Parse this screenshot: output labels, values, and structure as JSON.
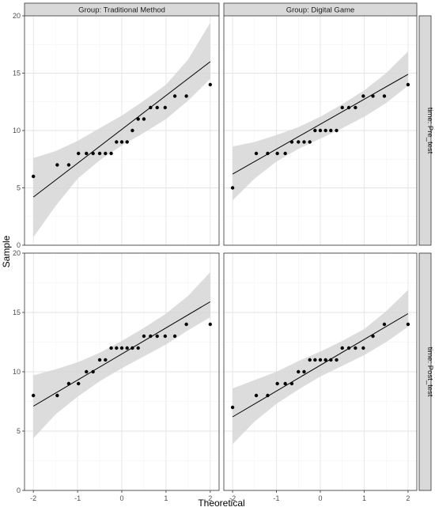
{
  "chart_data": {
    "type": "scatter",
    "kind": "faceted QQ plot with confidence band",
    "xlabel": "Theoretical",
    "ylabel": "Sample",
    "xlim": [
      -2.2,
      2.2
    ],
    "ylim": [
      0,
      20
    ],
    "x_ticks": [
      -2,
      -1,
      0,
      1,
      2
    ],
    "y_ticks": [
      0,
      5,
      10,
      15,
      20
    ],
    "x_tick_labels": [
      "-2",
      "-1",
      "0",
      "1",
      "2"
    ],
    "y_tick_labels": [
      "0",
      "5",
      "10",
      "15",
      "20"
    ],
    "grid": true,
    "column_strips": [
      "Group: Traditional Method",
      "Group: Digital Game"
    ],
    "row_strips": [
      "time: Pre_test",
      "time: Post_test"
    ],
    "theoretical_quantiles": [
      -2.0,
      -1.46,
      -1.2,
      -0.98,
      -0.8,
      -0.65,
      -0.5,
      -0.37,
      -0.24,
      -0.12,
      0.0,
      0.12,
      0.24,
      0.37,
      0.5,
      0.65,
      0.8,
      0.98,
      1.2,
      1.46,
      2.0
    ],
    "panels": [
      {
        "column": "Group: Traditional Method",
        "row": "time: Pre_test",
        "sample": [
          6,
          7,
          7,
          8,
          8,
          8,
          8,
          8,
          8,
          9,
          9,
          9,
          10,
          11,
          11,
          12,
          12,
          12,
          13,
          13,
          14
        ],
        "line": {
          "x": [
            -2,
            2
          ],
          "y": [
            4.2,
            16.0
          ]
        },
        "band": {
          "x": [
            -2,
            -1.5,
            -1,
            -0.5,
            0,
            0.5,
            1,
            1.5,
            2
          ],
          "lower": [
            0.7,
            3.4,
            5.8,
            7.4,
            8.7,
            9.8,
            11.0,
            12.6,
            14.5
          ],
          "upper": [
            7.6,
            8.2,
            9.1,
            10.2,
            11.3,
            12.6,
            14.0,
            16.2,
            19.4
          ]
        }
      },
      {
        "column": "Group: Digital Game",
        "row": "time: Pre_test",
        "sample": [
          5,
          8,
          8,
          8,
          8,
          9,
          9,
          9,
          9,
          10,
          10,
          10,
          10,
          10,
          12,
          12,
          12,
          13,
          13,
          13,
          14
        ],
        "line": {
          "x": [
            -2,
            2
          ],
          "y": [
            6.2,
            14.9
          ]
        },
        "band": {
          "x": [
            -2,
            -1.5,
            -1,
            -0.5,
            0,
            0.5,
            1,
            1.5,
            2
          ],
          "lower": [
            3.9,
            5.8,
            7.3,
            8.4,
            9.3,
            10.2,
            11.2,
            12.4,
            13.9
          ],
          "upper": [
            8.6,
            9.0,
            9.6,
            10.3,
            11.2,
            12.3,
            13.5,
            15.0,
            16.9
          ]
        }
      },
      {
        "column": "Group: Traditional Method",
        "row": "time: Post_test",
        "sample": [
          8,
          8,
          9,
          9,
          10,
          10,
          11,
          11,
          12,
          12,
          12,
          12,
          12,
          12,
          13,
          13,
          13,
          13,
          13,
          14,
          14
        ],
        "line": {
          "x": [
            -2,
            2
          ],
          "y": [
            7.1,
            15.9
          ]
        },
        "band": {
          "x": [
            -2,
            -1.5,
            -1,
            -0.5,
            0,
            0.5,
            1,
            1.5,
            2
          ],
          "lower": [
            4.4,
            6.4,
            7.9,
            9.2,
            10.3,
            11.3,
            12.3,
            13.5,
            14.6
          ],
          "upper": [
            9.7,
            10.2,
            10.8,
            11.6,
            12.6,
            13.7,
            14.9,
            16.4,
            18.4
          ]
        }
      },
      {
        "column": "Group: Digital Game",
        "row": "time: Post_test",
        "sample": [
          7,
          8,
          8,
          9,
          9,
          9,
          10,
          10,
          11,
          11,
          11,
          11,
          11,
          11,
          12,
          12,
          12,
          12,
          13,
          14,
          14
        ],
        "line": {
          "x": [
            -2,
            2
          ],
          "y": [
            6.2,
            14.9
          ]
        },
        "band": {
          "x": [
            -2,
            -1.5,
            -1,
            -0.5,
            0,
            0.5,
            1,
            1.5,
            2
          ],
          "lower": [
            3.9,
            5.8,
            7.3,
            8.5,
            9.6,
            10.5,
            11.4,
            12.5,
            13.8
          ],
          "upper": [
            8.6,
            9.3,
            10.0,
            10.9,
            11.7,
            12.6,
            13.6,
            15.1,
            16.9
          ]
        }
      }
    ]
  },
  "colors": {
    "panel_border": "#333333",
    "grid_major": "#e3e3e3",
    "grid_minor": "#f2f2f2",
    "strip_fill": "#d9d9d9",
    "band_fill": "#d6d6d6",
    "line": "#000000",
    "point": "#000000",
    "tick_label": "#4d4d4d"
  }
}
